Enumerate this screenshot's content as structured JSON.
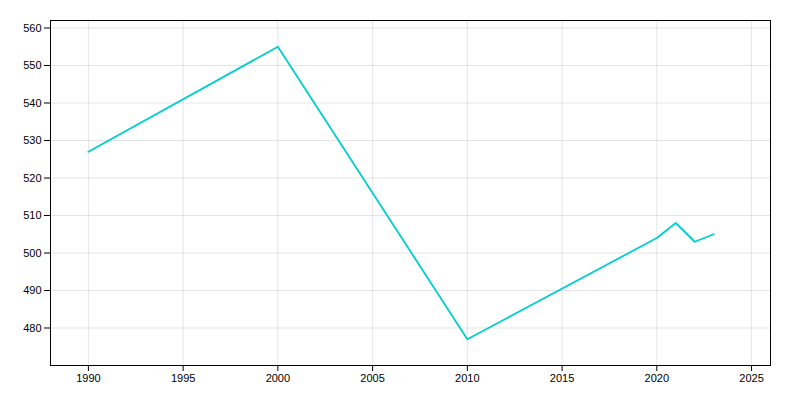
{
  "chart_data": {
    "type": "line",
    "x": [
      1990,
      2000,
      2010,
      2020,
      2021,
      2022,
      2023
    ],
    "values": [
      527,
      555,
      477,
      504,
      508,
      503,
      505
    ],
    "color": "#00CED1",
    "xlim": [
      1988,
      2026
    ],
    "ylim": [
      470,
      562
    ],
    "xticks": [
      1990,
      1995,
      2000,
      2005,
      2010,
      2015,
      2020,
      2025
    ],
    "yticks": [
      480,
      490,
      500,
      510,
      520,
      530,
      540,
      550,
      560
    ],
    "grid": true
  }
}
